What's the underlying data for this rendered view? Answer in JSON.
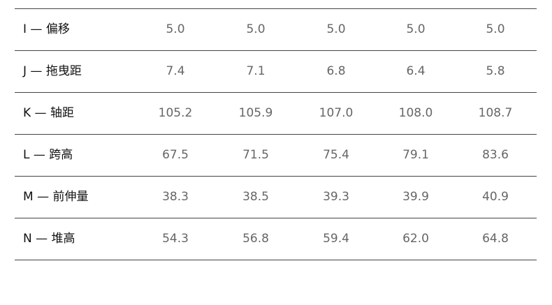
{
  "table": {
    "rows": [
      [
        "I — 偏移",
        "5.0",
        "5.0",
        "5.0",
        "5.0",
        "5.0"
      ],
      [
        "J — 拖曳距",
        "7.4",
        "7.1",
        "6.8",
        "6.4",
        "5.8"
      ],
      [
        "K — 轴距",
        "105.2",
        "105.9",
        "107.0",
        "108.0",
        "108.7"
      ],
      [
        "L — 跨高",
        "67.5",
        "71.5",
        "75.4",
        "79.1",
        "83.6"
      ],
      [
        "M — 前伸量",
        "38.3",
        "38.5",
        "39.3",
        "39.9",
        "40.9"
      ],
      [
        "N — 堆高",
        "54.3",
        "56.8",
        "59.4",
        "62.0",
        "64.8"
      ]
    ]
  }
}
